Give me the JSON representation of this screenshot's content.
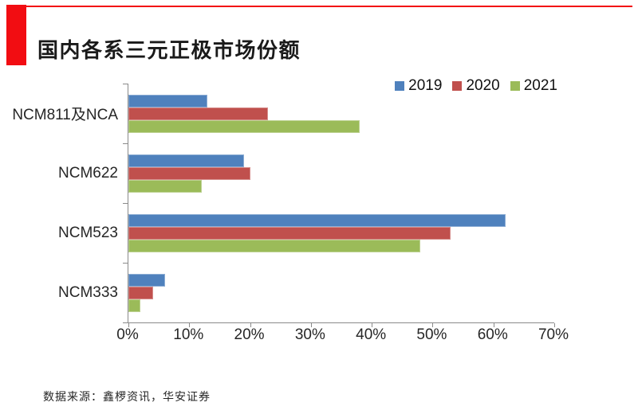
{
  "header": {
    "title": "国内各系三元正极市场份额",
    "accent_color": "#F20D12"
  },
  "footer": {
    "source": "数据来源：鑫椤资讯，华安证券"
  },
  "chart_data": {
    "type": "bar",
    "orientation": "horizontal",
    "title": "国内各系三元正极市场份额",
    "categories": [
      "NCM811及NCA",
      "NCM622",
      "NCM523",
      "NCM333"
    ],
    "series": [
      {
        "name": "2019",
        "color": "#4F81BD",
        "values": [
          13,
          19,
          62,
          6
        ]
      },
      {
        "name": "2020",
        "color": "#C0504D",
        "values": [
          23,
          20,
          53,
          4
        ]
      },
      {
        "name": "2021",
        "color": "#9BBB59",
        "values": [
          38,
          12,
          48,
          2
        ]
      }
    ],
    "x_axis": {
      "min": 0,
      "max": 70,
      "tick_step": 10,
      "unit": "%",
      "tick_labels": [
        "0%",
        "10%",
        "20%",
        "30%",
        "40%",
        "50%",
        "60%",
        "70%"
      ]
    },
    "legend_position": "top-right",
    "grid": false,
    "axis_color": "#8A8A8A"
  }
}
